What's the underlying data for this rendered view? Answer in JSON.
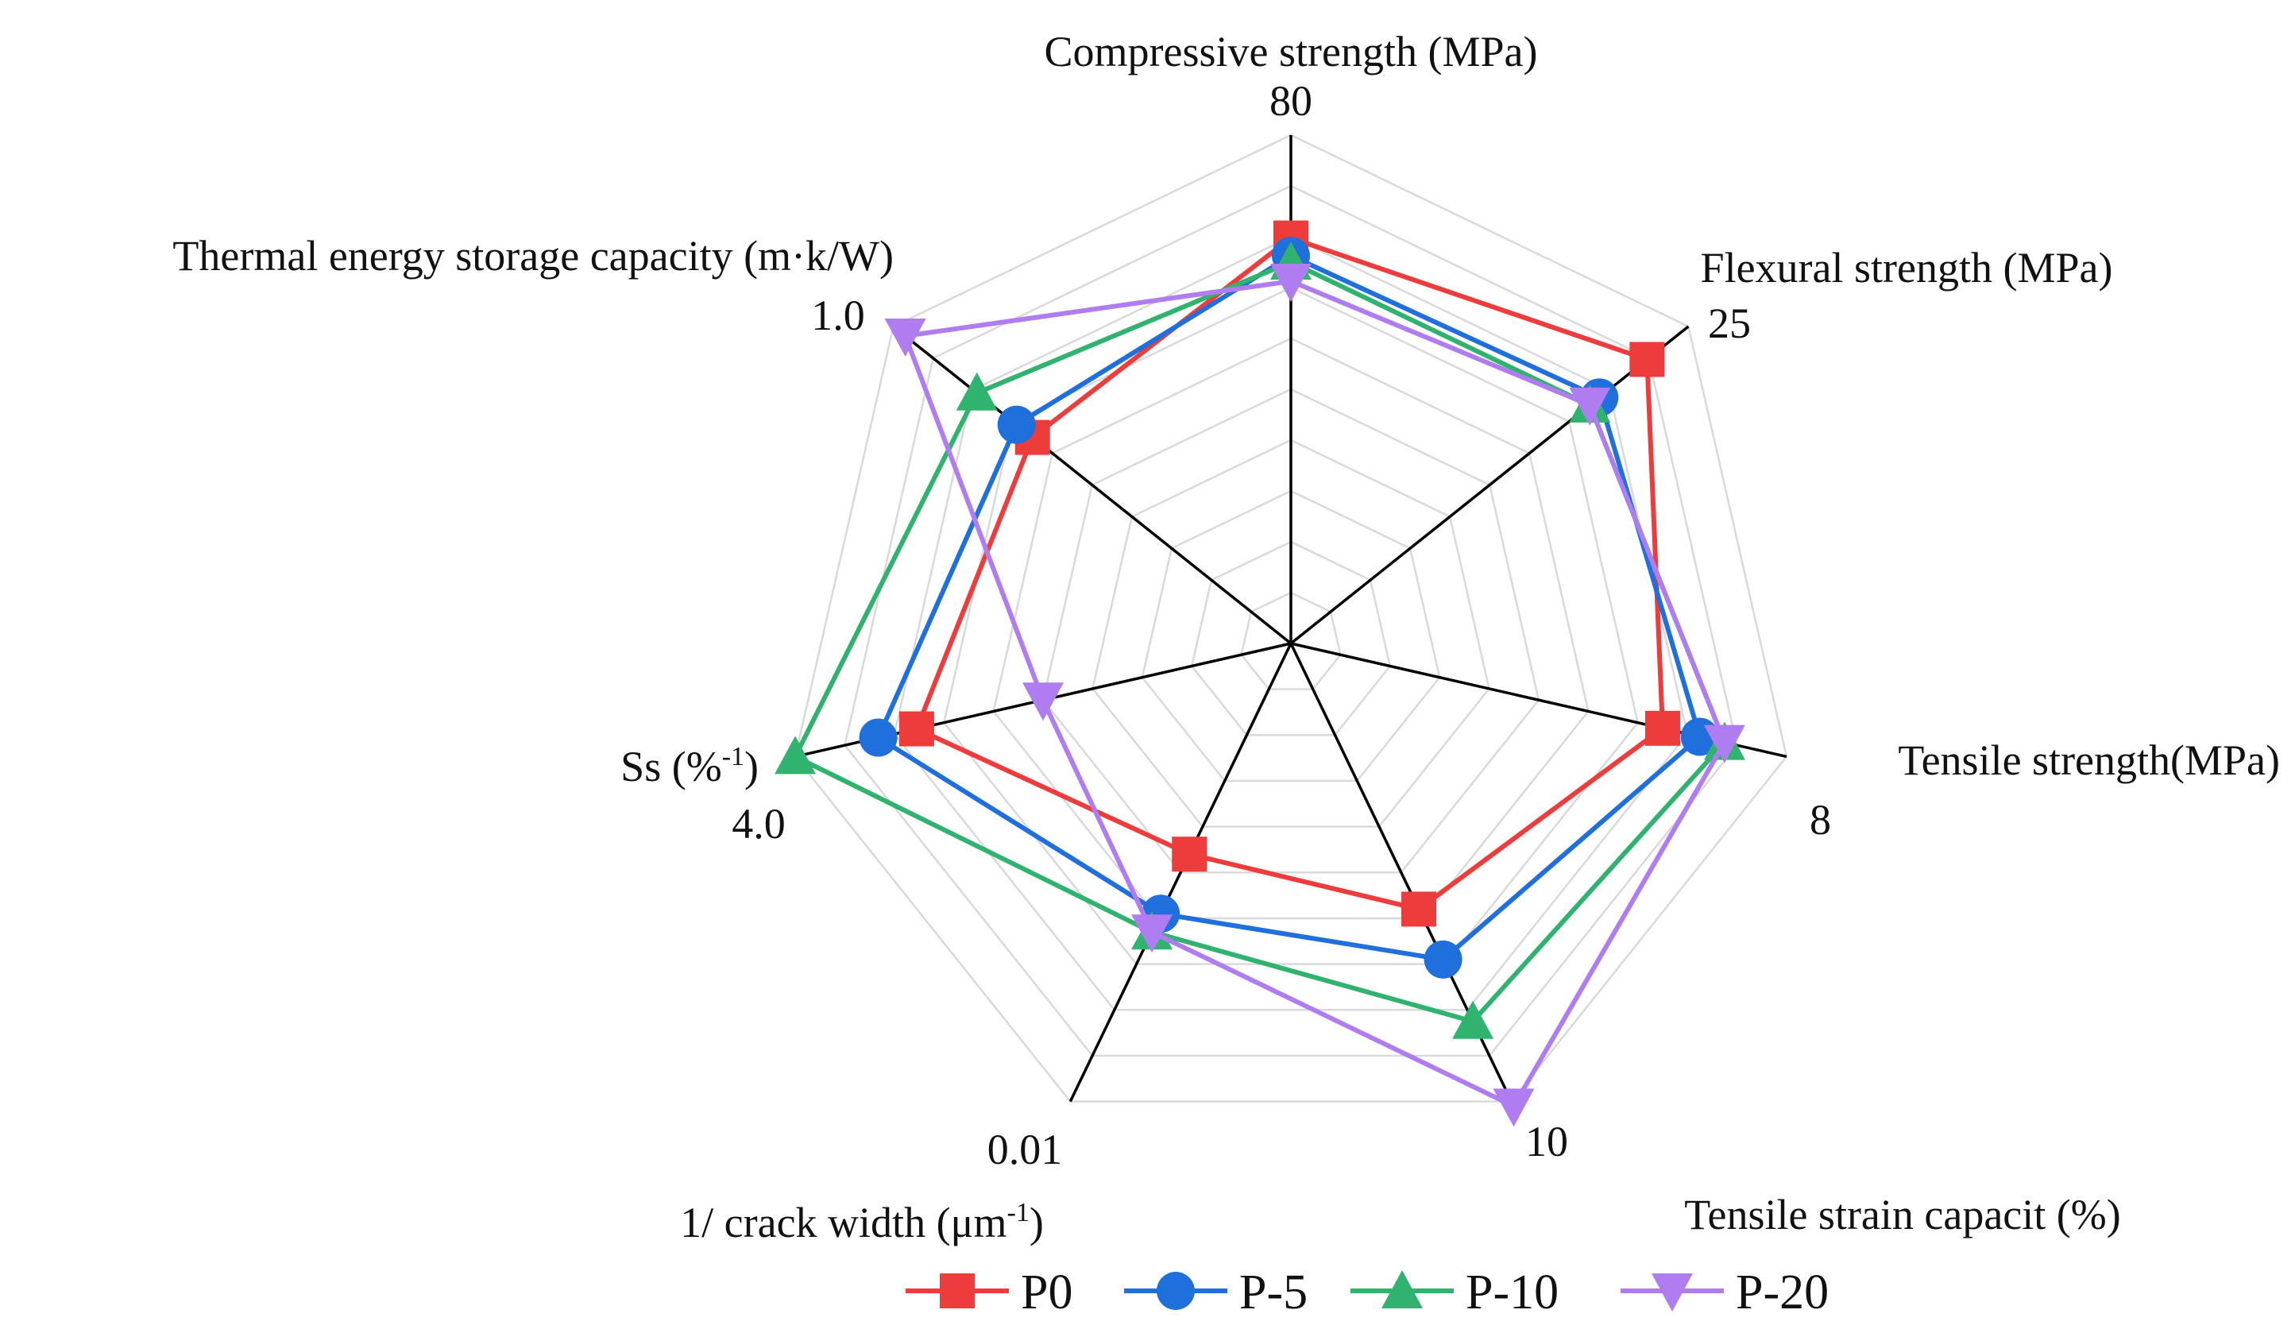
{
  "chart_data": {
    "type": "radar",
    "title": "",
    "axes": [
      {
        "key": "compressive",
        "label": "Compressive strength (MPa)",
        "max": 80,
        "max_label": "80"
      },
      {
        "key": "flexural",
        "label": "Flexural strength (MPa)",
        "max": 25,
        "max_label": "25"
      },
      {
        "key": "tensile_strength",
        "label": "Tensile strength(MPa)",
        "max": 8,
        "max_label": "8"
      },
      {
        "key": "tensile_strain",
        "label": "Tensile strain capacit (%)",
        "max": 10,
        "max_label": "10"
      },
      {
        "key": "crack",
        "label": "1/ crack width (μm",
        "label_sup": "-1",
        "label_suffix": ")",
        "max": 0.01,
        "max_label": "0.01"
      },
      {
        "key": "ss",
        "label": "Ss (%",
        "label_sup": "-1",
        "label_suffix": ")",
        "max": 4.0,
        "max_label": "4.0"
      },
      {
        "key": "thermal",
        "label": "Thermal energy storage capacity (m·k/W)",
        "max": 1.0,
        "max_label": "1.0"
      }
    ],
    "grid_rings": 10,
    "series": [
      {
        "name": "P0",
        "color": "#ee3b3b",
        "marker": "square",
        "values": [
          63.8,
          22.4,
          6.0,
          5.8,
          0.0046,
          3.02,
          0.65
        ]
      },
      {
        "name": "P-5",
        "color": "#1f6fdc",
        "marker": "circle",
        "values": [
          61.0,
          19.4,
          6.6,
          6.9,
          0.0059,
          3.33,
          0.69
        ]
      },
      {
        "name": "P-10",
        "color": "#2fb36e",
        "marker": "triangle-up",
        "values": [
          60.0,
          18.8,
          7.0,
          8.25,
          0.0063,
          4.0,
          0.79
        ]
      },
      {
        "name": "P-20",
        "color": "#b07df0",
        "marker": "triangle-down",
        "values": [
          57.0,
          18.8,
          7.0,
          10.1,
          0.0063,
          2.0,
          0.97
        ]
      }
    ],
    "legend": {
      "position": "bottom"
    }
  }
}
